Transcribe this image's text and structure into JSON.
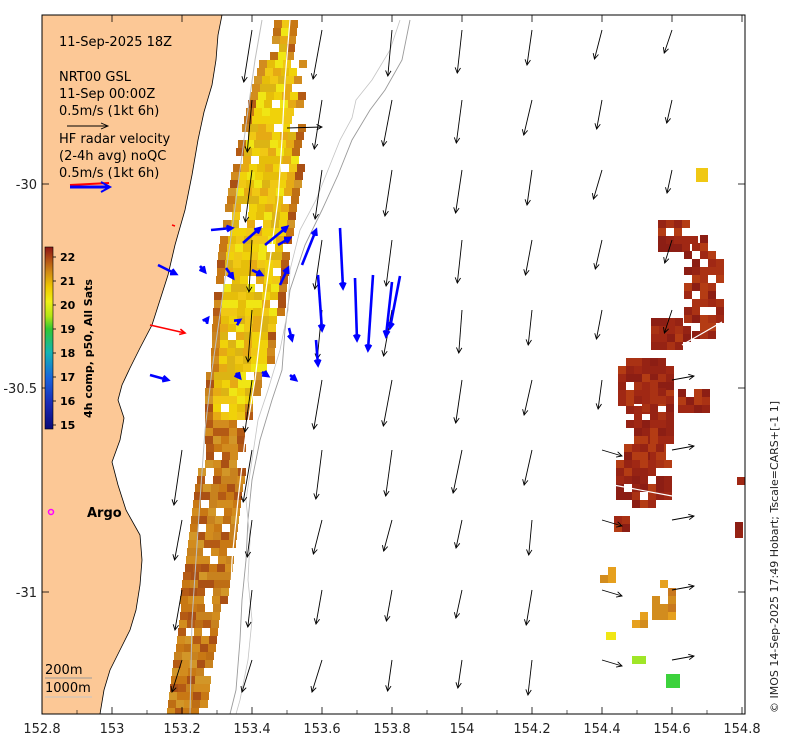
{
  "title": {
    "date": "11-Sep-2025 18Z",
    "model_line1": "NRT00 GSL",
    "model_line2": "11-Sep 00:00Z",
    "model_scale": "0.5m/s (1kt 6h)",
    "hf_line1": "HF radar velocity",
    "hf_line2": "(2-4h avg) noQC",
    "hf_scale": "0.5m/s (1kt 6h)"
  },
  "colorbar": {
    "label": "4h comp, p50, All Sats",
    "ticks": [
      "22",
      "21",
      "20",
      "19",
      "18",
      "17",
      "16",
      "15"
    ]
  },
  "labels": {
    "argo": "Argo",
    "contour_200": "200m",
    "contour_1000": "1000m",
    "credit": "© IMOS 14-Sep-2025 17:49 Hobart; Tscale=CARS+[-1 1]"
  },
  "axes": {
    "x_ticks": [
      "152.8",
      "153",
      "153.2",
      "153.4",
      "153.6",
      "153.8",
      "154",
      "154.2",
      "154.4",
      "154.6",
      "154.8"
    ],
    "y_ticks": [
      "-30",
      "-30.5",
      "-31"
    ]
  },
  "colors": {
    "land": "#fcc896",
    "model_arrow": "#000000",
    "hf_arrow": "#0000ff",
    "hf_red_arrow": "#ff0000",
    "argo": "#ff00ff"
  }
}
